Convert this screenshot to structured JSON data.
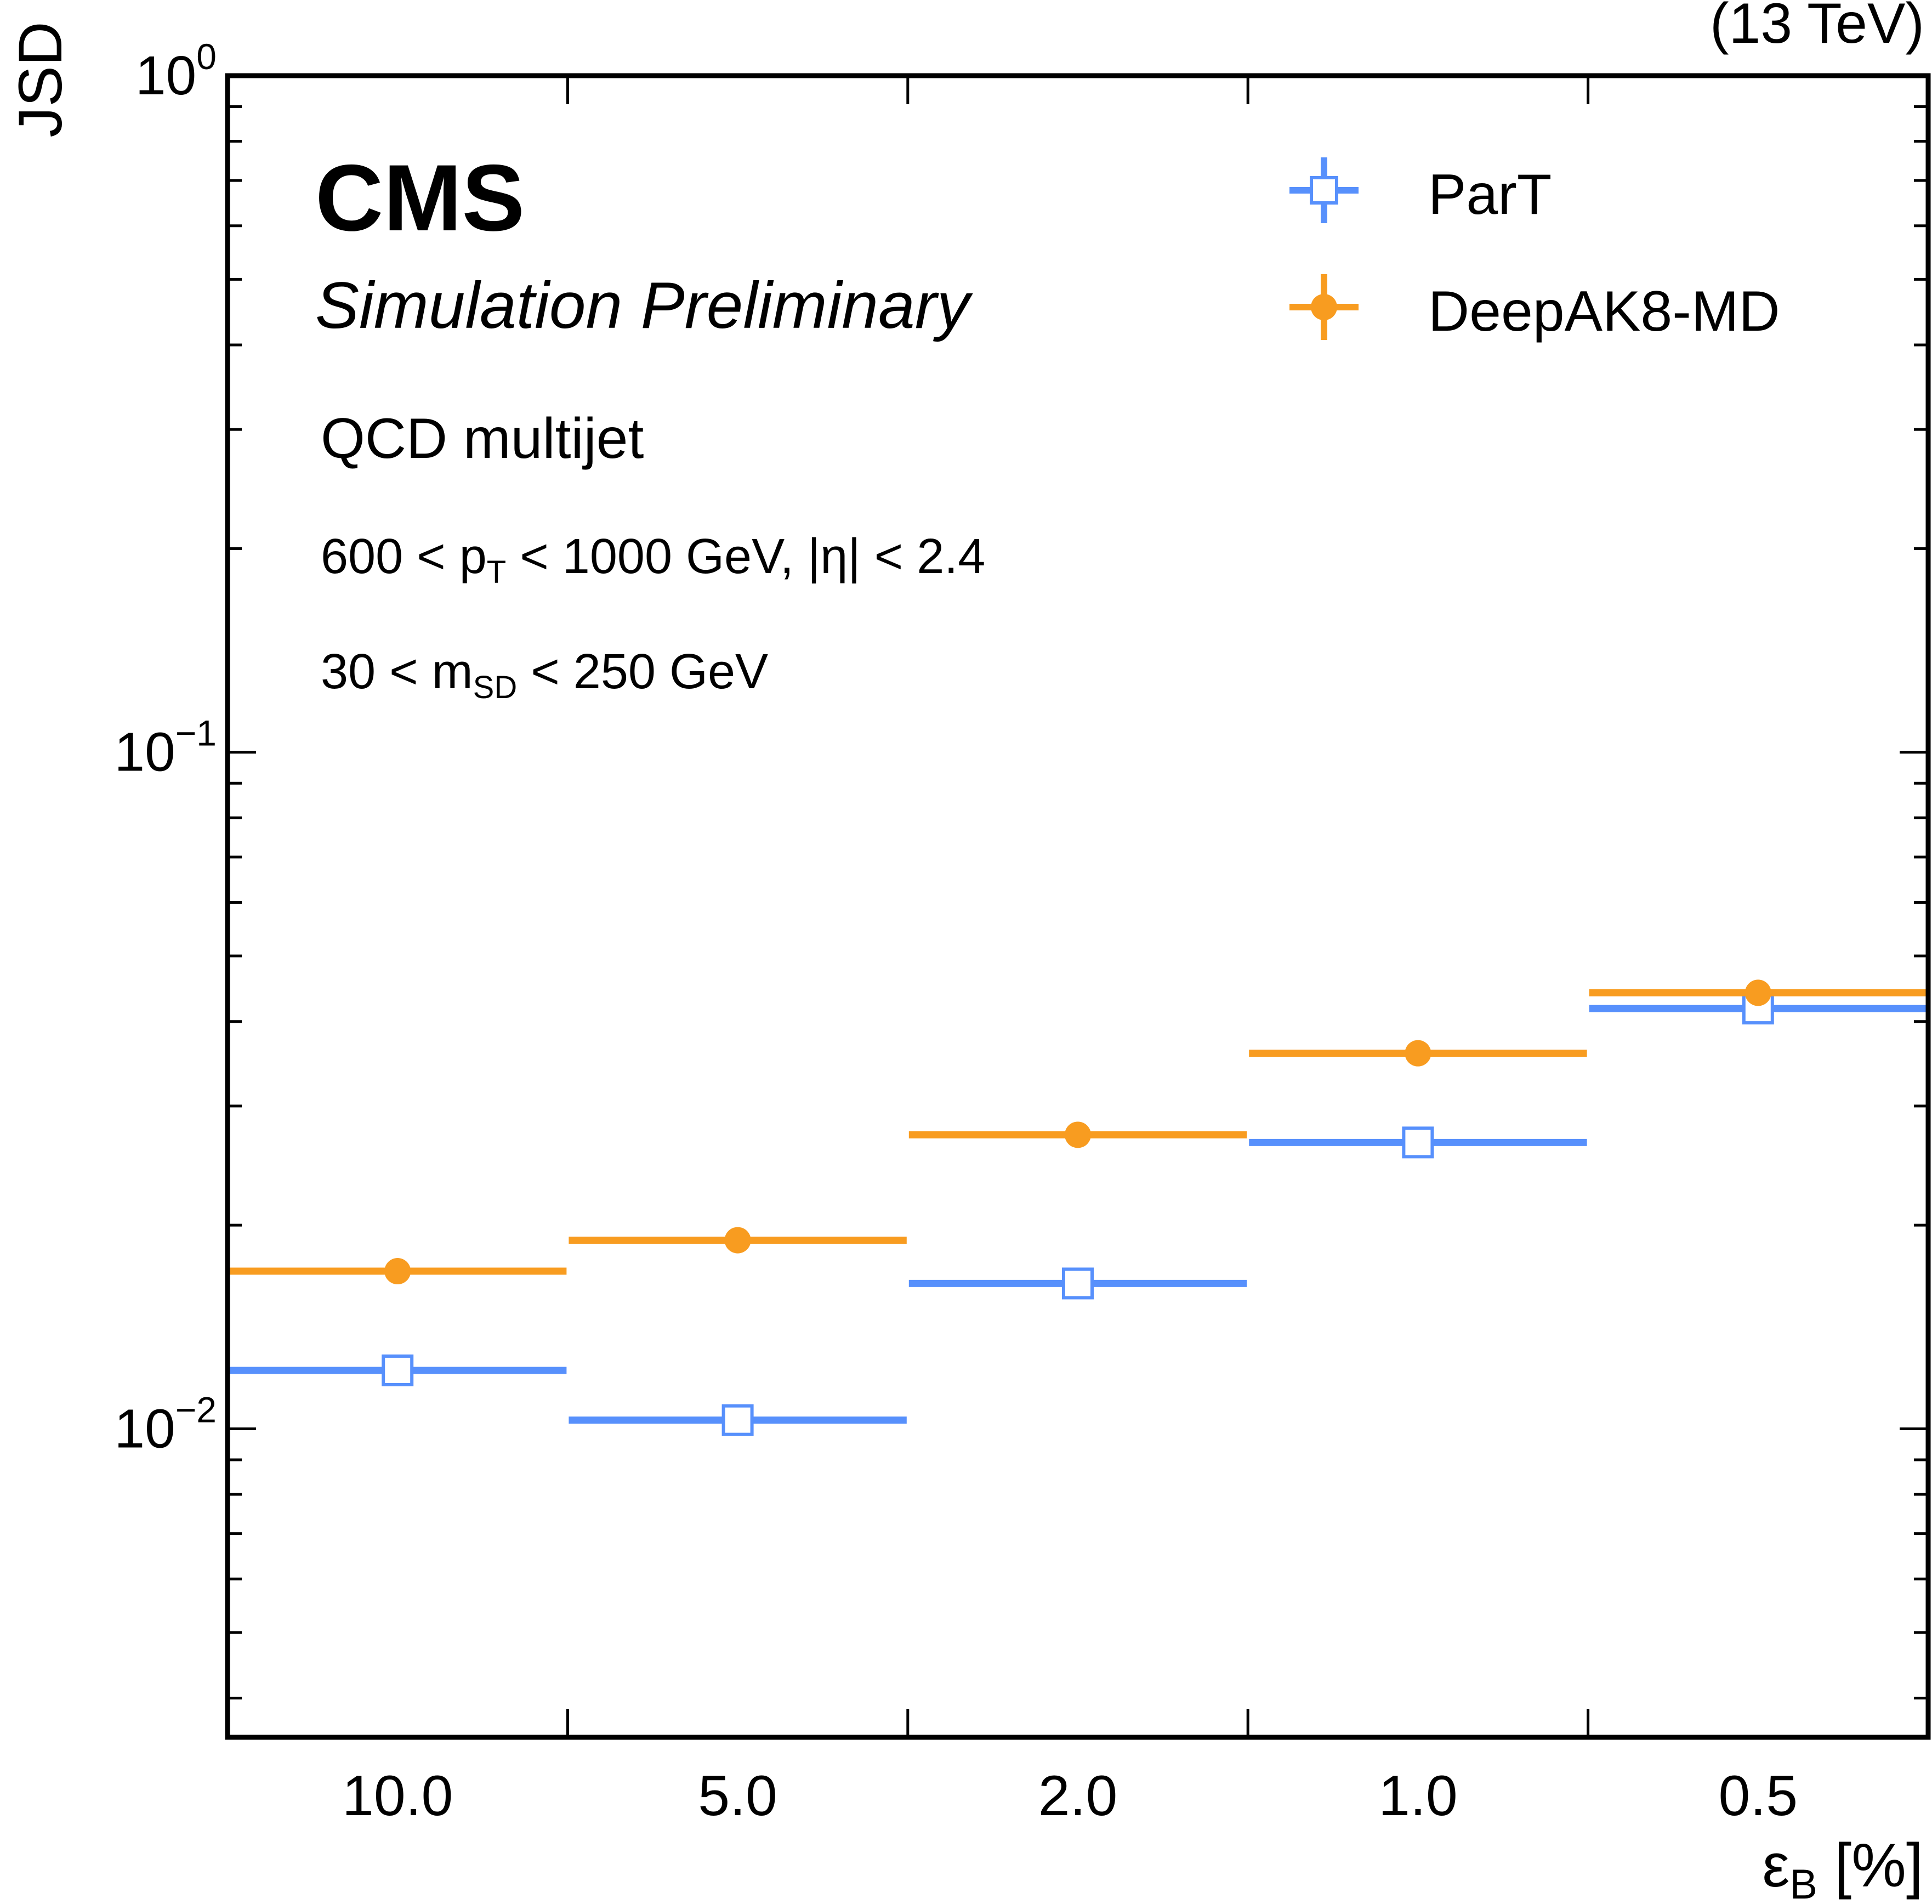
{
  "header": {
    "energy": "(13 TeV)",
    "experiment": "CMS",
    "status": "Simulation Preliminary"
  },
  "annotations": {
    "sample": "QCD multijet",
    "pt_cut": {
      "pre": "600 < p",
      "sub": "T",
      "post": " < 1000 GeV, |η| < 2.4"
    },
    "mass_cut": {
      "pre": "30 < m",
      "sub": "SD",
      "post": " < 250 GeV"
    }
  },
  "legend": {
    "items": [
      {
        "label": "ParT",
        "color": "#5790fc",
        "marker": "open-square"
      },
      {
        "label": "DeepAK8-MD",
        "color": "#f89c20",
        "marker": "filled-circle"
      }
    ]
  },
  "chart_data": {
    "type": "scatter",
    "categories": [
      "10.0",
      "5.0",
      "2.0",
      "1.0",
      "0.5"
    ],
    "xlabel": {
      "main": "ε",
      "sub": "B",
      "unit": " [%]"
    },
    "ylabel": "JSD",
    "yscale": "log",
    "ylim": [
      0.0035,
      1.0
    ],
    "y_ticks": [
      {
        "value": 1,
        "base": "10",
        "exp": "0"
      },
      {
        "value": 0.1,
        "base": "10",
        "exp": "−1"
      },
      {
        "value": 0.01,
        "base": "10",
        "exp": "−2"
      }
    ],
    "grid": false,
    "legend_position": "top-right",
    "series": [
      {
        "name": "ParT",
        "color": "#5790fc",
        "marker": "open-square",
        "values": [
          0.0122,
          0.0103,
          0.0164,
          0.0265,
          0.0418
        ]
      },
      {
        "name": "DeepAK8-MD",
        "color": "#f89c20",
        "marker": "filled-circle",
        "values": [
          0.0171,
          0.019,
          0.0272,
          0.0359,
          0.0441
        ]
      }
    ]
  }
}
